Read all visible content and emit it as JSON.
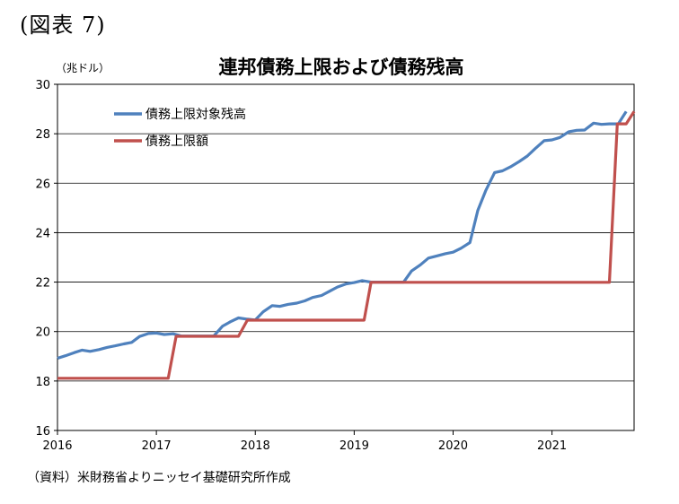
{
  "figure_label": "(図表 7)",
  "source_note": "（資料）米財務省よりニッセイ基礎研究所作成",
  "chart_data": {
    "type": "line",
    "title": "連邦債務上限および債務残高",
    "ylabel": "（兆ドル）",
    "xlabel": "",
    "ylim": [
      16,
      30
    ],
    "xlim": [
      2016,
      2021.83
    ],
    "y_ticks": [
      "16",
      "18",
      "20",
      "22",
      "24",
      "26",
      "28",
      "30"
    ],
    "x_ticks": [
      "2016",
      "2017",
      "2018",
      "2019",
      "2020",
      "2021"
    ],
    "grid": true,
    "legend_position": "top-left",
    "series": [
      {
        "name": "債務上限対象残高",
        "color": "#4f81bd",
        "x": [
          2016.0,
          2016.08,
          2016.17,
          2016.25,
          2016.33,
          2016.42,
          2016.5,
          2016.58,
          2016.67,
          2016.75,
          2016.83,
          2016.92,
          2017.0,
          2017.08,
          2017.17,
          2017.25,
          2017.33,
          2017.42,
          2017.5,
          2017.58,
          2017.67,
          2017.75,
          2017.83,
          2017.92,
          2018.0,
          2018.08,
          2018.17,
          2018.25,
          2018.33,
          2018.42,
          2018.5,
          2018.58,
          2018.67,
          2018.75,
          2018.83,
          2018.92,
          2019.0,
          2019.08,
          2019.17,
          2019.25,
          2019.33,
          2019.42,
          2019.5,
          2019.58,
          2019.67,
          2019.75,
          2019.83,
          2019.92,
          2020.0,
          2020.08,
          2020.17,
          2020.25,
          2020.33,
          2020.42,
          2020.5,
          2020.58,
          2020.67,
          2020.75,
          2020.83,
          2020.92,
          2021.0,
          2021.08,
          2021.17,
          2021.25,
          2021.33,
          2021.42,
          2021.5,
          2021.58,
          2021.67,
          2021.75,
          2021.83
        ],
        "values": [
          18.92,
          19.02,
          19.15,
          19.25,
          19.2,
          19.27,
          19.36,
          19.42,
          19.5,
          19.56,
          19.8,
          19.92,
          19.94,
          19.88,
          19.91,
          19.82,
          19.82,
          19.82,
          19.82,
          19.82,
          20.22,
          20.4,
          20.55,
          20.5,
          20.47,
          20.8,
          21.05,
          21.02,
          21.1,
          21.15,
          21.24,
          21.38,
          21.46,
          21.63,
          21.8,
          21.93,
          21.98,
          22.06,
          22.0,
          22.0,
          22.0,
          22.0,
          22.0,
          22.45,
          22.7,
          22.97,
          23.05,
          23.15,
          23.21,
          23.37,
          23.6,
          24.9,
          25.7,
          26.43,
          26.5,
          26.66,
          26.88,
          27.1,
          27.4,
          27.72,
          27.75,
          27.85,
          28.08,
          28.14,
          28.15,
          28.43,
          28.38,
          28.4,
          28.4,
          28.9,
          null
        ]
      },
      {
        "name": "債務上限額",
        "color": "#c0504d",
        "x": [
          2016.0,
          2017.12,
          2017.2,
          2017.83,
          2017.92,
          2019.1,
          2019.17,
          2021.58,
          2021.66,
          2021.75,
          2021.83
        ],
        "values": [
          18.11,
          18.11,
          19.81,
          19.81,
          20.46,
          20.46,
          21.99,
          21.99,
          28.4,
          28.4,
          28.9
        ]
      }
    ]
  }
}
